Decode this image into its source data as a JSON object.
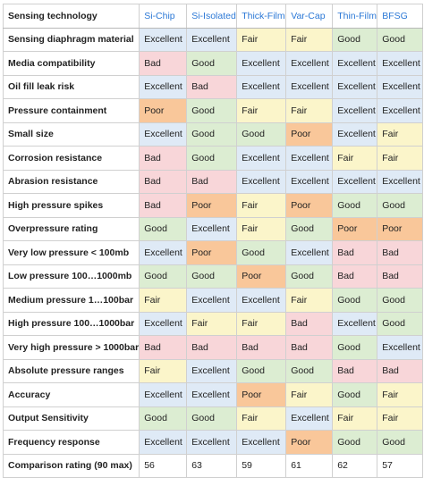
{
  "table": {
    "corner_label": "Sensing technology",
    "columns": [
      "Si-Chip",
      "Si-Isolated",
      "Thick-Film",
      "Var-Cap",
      "Thin-Film",
      "BFSG"
    ],
    "rows": [
      {
        "label": "Sensing diaphragm material",
        "values": [
          "Excellent",
          "Excellent",
          "Fair",
          "Fair",
          "Good",
          "Good"
        ]
      },
      {
        "label": "Media compatibility",
        "values": [
          "Bad",
          "Good",
          "Excellent",
          "Excellent",
          "Excellent",
          "Excellent"
        ]
      },
      {
        "label": "Oil fill leak risk",
        "values": [
          "Excellent",
          "Bad",
          "Excellent",
          "Excellent",
          "Excellent",
          "Excellent"
        ]
      },
      {
        "label": "Pressure containment",
        "values": [
          "Poor",
          "Good",
          "Fair",
          "Fair",
          "Excellent",
          "Excellent"
        ]
      },
      {
        "label": "Small size",
        "values": [
          "Excellent",
          "Good",
          "Good",
          "Poor",
          "Excellent",
          "Fair"
        ]
      },
      {
        "label": "Corrosion resistance",
        "values": [
          "Bad",
          "Good",
          "Excellent",
          "Excellent",
          "Fair",
          "Fair"
        ]
      },
      {
        "label": "Abrasion resistance",
        "values": [
          "Bad",
          "Bad",
          "Excellent",
          "Excellent",
          "Excellent",
          "Excellent"
        ]
      },
      {
        "label": "High pressure spikes",
        "values": [
          "Bad",
          "Poor",
          "Fair",
          "Poor",
          "Good",
          "Good"
        ]
      },
      {
        "label": "Overpressure rating",
        "values": [
          "Good",
          "Excellent",
          "Fair",
          "Good",
          "Poor",
          "Poor"
        ]
      },
      {
        "label": "Very low pressure < 100mb",
        "values": [
          "Excellent",
          "Poor",
          "Good",
          "Excellent",
          "Bad",
          "Bad"
        ]
      },
      {
        "label": "Low pressure 100…1000mb",
        "values": [
          "Good",
          "Good",
          "Poor",
          "Good",
          "Bad",
          "Bad"
        ]
      },
      {
        "label": "Medium pressure 1…100bar",
        "values": [
          "Fair",
          "Excellent",
          "Excellent",
          "Fair",
          "Good",
          "Good"
        ]
      },
      {
        "label": "High pressure 100…1000bar",
        "values": [
          "Excellent",
          "Fair",
          "Fair",
          "Bad",
          "Excellent",
          "Good"
        ]
      },
      {
        "label": "Very high pressure > 1000bar",
        "values": [
          "Bad",
          "Bad",
          "Bad",
          "Bad",
          "Good",
          "Excellent"
        ]
      },
      {
        "label": "Absolute pressure ranges",
        "values": [
          "Fair",
          "Excellent",
          "Good",
          "Good",
          "Bad",
          "Bad"
        ]
      },
      {
        "label": "Accuracy",
        "values": [
          "Excellent",
          "Excellent",
          "Poor",
          "Fair",
          "Good",
          "Fair"
        ]
      },
      {
        "label": "Output Sensitivity",
        "values": [
          "Good",
          "Good",
          "Fair",
          "Excellent",
          "Fair",
          "Fair"
        ]
      },
      {
        "label": "Frequency response",
        "values": [
          "Excellent",
          "Excellent",
          "Excellent",
          "Poor",
          "Good",
          "Good"
        ]
      }
    ],
    "footer": {
      "label": "Comparison rating (90 max)",
      "values": [
        "56",
        "63",
        "59",
        "61",
        "62",
        "57"
      ]
    },
    "rating_colors": {
      "Excellent": "#dfeaf6",
      "Good": "#dcedd2",
      "Fair": "#fbf5ca",
      "Poor": "#f9c79a",
      "Bad": "#f8d6d9"
    },
    "header_text_color": "#2b78d6"
  }
}
